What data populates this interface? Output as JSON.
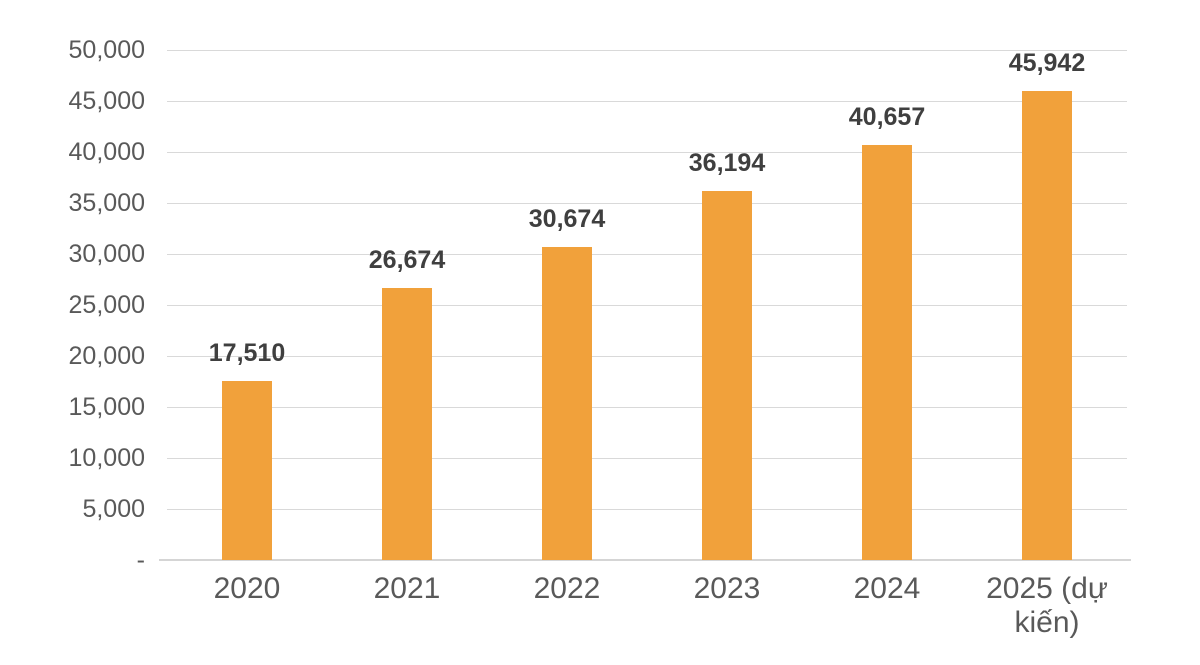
{
  "chart_data": {
    "type": "bar",
    "title": "",
    "xlabel": "",
    "ylabel": "",
    "categories": [
      "2020",
      "2021",
      "2022",
      "2023",
      "2024",
      "2025 (dự kiến)"
    ],
    "values": [
      17510,
      26674,
      30674,
      36194,
      40657,
      45942
    ],
    "value_labels": [
      "17,510",
      "26,674",
      "30,674",
      "36,194",
      "40,657",
      "45,942"
    ],
    "ylim": [
      0,
      50000
    ],
    "ytick_interval": 5000,
    "ytick_labels": [
      "-",
      "5,000",
      "10,000",
      "15,000",
      "20,000",
      "25,000",
      "30,000",
      "35,000",
      "40,000",
      "45,000",
      "50,000"
    ],
    "grid": "horizontal-only",
    "legend": "none",
    "colors": {
      "bar": "#f1a13b",
      "gridline": "#d9d9d9",
      "axis_line": "#d5d5d5",
      "tick_label": "#595959",
      "data_label": "#3f3f3f",
      "background": "#ffffff"
    }
  }
}
